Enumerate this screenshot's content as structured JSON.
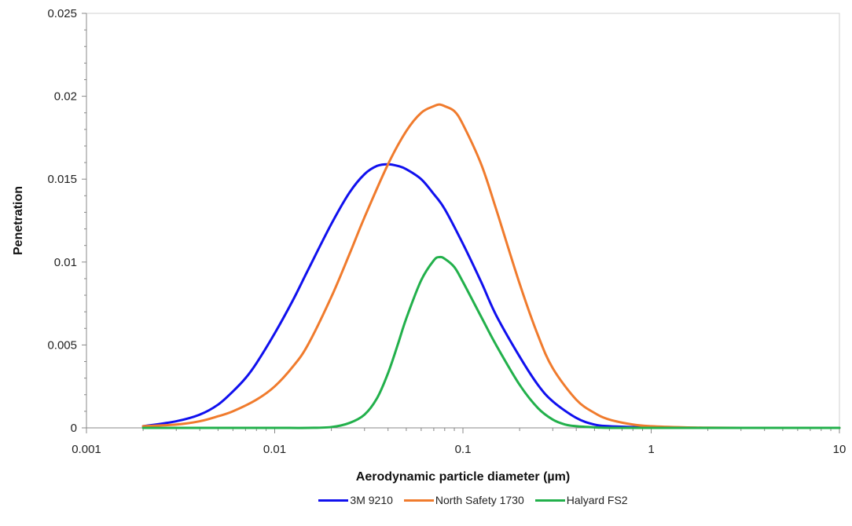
{
  "chart_data": {
    "type": "line",
    "xlabel": "Aerodynamic particle diameter (µm)",
    "ylabel": "Penetration",
    "xscale": "log",
    "xlim": [
      0.001,
      10
    ],
    "ylim": [
      0,
      0.025
    ],
    "x_tick_labels": [
      "0.001",
      "0.01",
      "0.1",
      "1",
      "10"
    ],
    "y_tick_labels": [
      "0",
      "0.005",
      "0.01",
      "0.015",
      "0.02",
      "0.025"
    ],
    "grid": false,
    "legend_position": "bottom",
    "series": [
      {
        "name": "3M 9210",
        "color": "#1010ee",
        "x": [
          0.002,
          0.003,
          0.004,
          0.005,
          0.006,
          0.007,
          0.008,
          0.01,
          0.0125,
          0.015,
          0.02,
          0.025,
          0.03,
          0.035,
          0.04,
          0.045,
          0.05,
          0.06,
          0.07,
          0.08,
          0.1,
          0.125,
          0.15,
          0.2,
          0.25,
          0.3,
          0.4,
          0.5,
          0.6,
          0.8,
          1,
          1.5,
          2,
          3,
          5,
          10
        ],
        "y": [
          0.0001,
          0.0004,
          0.0008,
          0.0014,
          0.0022,
          0.003,
          0.0039,
          0.0057,
          0.0077,
          0.0095,
          0.0123,
          0.0142,
          0.0153,
          0.0158,
          0.0159,
          0.0158,
          0.0156,
          0.015,
          0.0141,
          0.0132,
          0.0111,
          0.0088,
          0.0068,
          0.0043,
          0.0026,
          0.0016,
          0.0006,
          0.0002,
          0.0001,
          5e-05,
          2e-05,
          0,
          0,
          0,
          0,
          0
        ]
      },
      {
        "name": "North Safety 1730",
        "color": "#f07b2d",
        "x": [
          0.002,
          0.003,
          0.004,
          0.005,
          0.006,
          0.008,
          0.01,
          0.0125,
          0.015,
          0.02,
          0.025,
          0.03,
          0.04,
          0.05,
          0.06,
          0.07,
          0.075,
          0.08,
          0.09,
          0.1,
          0.125,
          0.15,
          0.2,
          0.25,
          0.3,
          0.4,
          0.5,
          0.6,
          0.8,
          1,
          1.5,
          2,
          3,
          5,
          10
        ],
        "y": [
          0.0001,
          0.0002,
          0.0004,
          0.0007,
          0.001,
          0.0017,
          0.0025,
          0.0037,
          0.005,
          0.0079,
          0.0105,
          0.0127,
          0.0159,
          0.0179,
          0.019,
          0.0194,
          0.0195,
          0.0194,
          0.0191,
          0.0183,
          0.0159,
          0.0132,
          0.0087,
          0.0056,
          0.0036,
          0.0017,
          0.0009,
          0.0005,
          0.0002,
          0.0001,
          3e-05,
          1e-05,
          0,
          0,
          0
        ]
      },
      {
        "name": "Halyard FS2",
        "color": "#22b04b",
        "x": [
          0.002,
          0.005,
          0.01,
          0.015,
          0.02,
          0.025,
          0.03,
          0.035,
          0.04,
          0.045,
          0.05,
          0.06,
          0.07,
          0.075,
          0.08,
          0.09,
          0.1,
          0.125,
          0.15,
          0.2,
          0.25,
          0.3,
          0.35,
          0.4,
          0.5,
          0.6,
          1,
          2,
          5,
          10
        ],
        "y": [
          0,
          0,
          0,
          0,
          5e-05,
          0.0003,
          0.0008,
          0.0018,
          0.0033,
          0.005,
          0.0066,
          0.0089,
          0.0101,
          0.0103,
          0.0102,
          0.0097,
          0.0088,
          0.0067,
          0.005,
          0.0026,
          0.0012,
          0.0005,
          0.0002,
          0.0001,
          3e-05,
          0,
          0,
          0,
          0,
          0
        ]
      }
    ]
  }
}
